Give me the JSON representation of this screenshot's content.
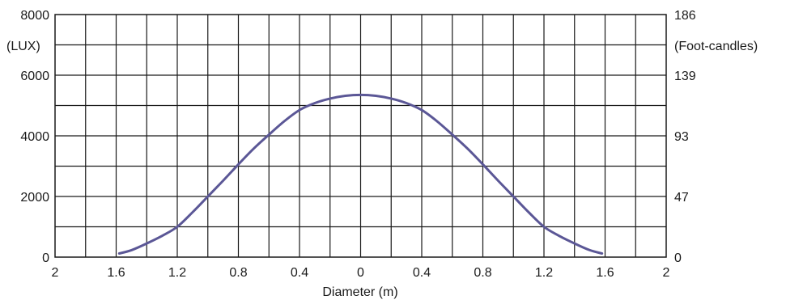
{
  "chart_data": {
    "type": "line",
    "title": "",
    "xlabel": "Diameter (m)",
    "x_ticks": [
      "2",
      "1.6",
      "1.2",
      "0.8",
      "0.4",
      "0",
      "0.4",
      "0.8",
      "1.2",
      "1.6",
      "2"
    ],
    "xlim": [
      -2,
      2
    ],
    "ylim": [
      0,
      8000
    ],
    "grid": true,
    "y_left": {
      "unit_label": "(LUX)",
      "ticks": [
        {
          "value": 0,
          "label": "0"
        },
        {
          "value": 2000,
          "label": "2000"
        },
        {
          "value": 4000,
          "label": "4000"
        },
        {
          "value": 6000,
          "label": "6000"
        },
        {
          "value": 8000,
          "label": "8000"
        }
      ]
    },
    "y_right": {
      "unit_label": "(Foot-candles)",
      "ticks": [
        {
          "value": 0,
          "label": "0"
        },
        {
          "value": 2000,
          "label": "47"
        },
        {
          "value": 4000,
          "label": "93"
        },
        {
          "value": 6000,
          "label": "139"
        },
        {
          "value": 8000,
          "label": "186"
        }
      ]
    },
    "series": [
      {
        "color": "#5b5796",
        "x": [
          -1.58,
          -1.5,
          -1.4,
          -1.3,
          -1.2,
          -1.1,
          -1.0,
          -0.9,
          -0.8,
          -0.7,
          -0.6,
          -0.5,
          -0.4,
          -0.3,
          -0.2,
          -0.1,
          0.0,
          0.1,
          0.2,
          0.3,
          0.4,
          0.5,
          0.6,
          0.7,
          0.8,
          0.9,
          1.0,
          1.1,
          1.2,
          1.3,
          1.4,
          1.5,
          1.58
        ],
        "y": [
          120,
          230,
          450,
          700,
          1000,
          1480,
          2000,
          2520,
          3060,
          3580,
          4040,
          4480,
          4850,
          5080,
          5230,
          5320,
          5350,
          5320,
          5230,
          5080,
          4850,
          4480,
          4040,
          3580,
          3060,
          2520,
          2000,
          1480,
          1000,
          700,
          450,
          230,
          120
        ]
      }
    ]
  }
}
